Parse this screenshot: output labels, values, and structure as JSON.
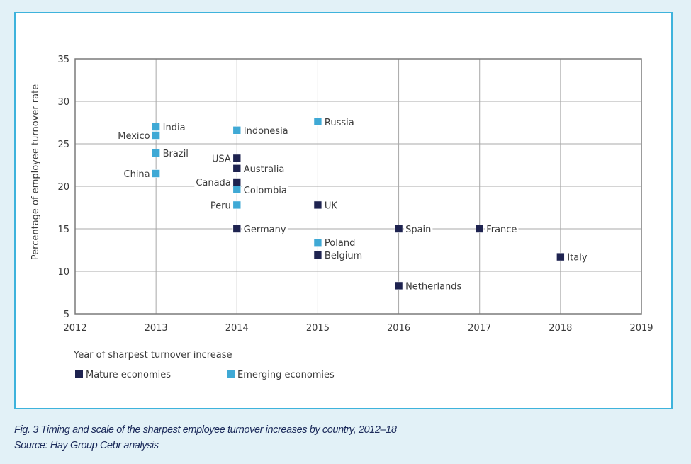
{
  "chart_data": {
    "type": "scatter",
    "title": "",
    "xlabel": "Year of sharpest turnover increase",
    "ylabel": "Percentage of employee turnover rate",
    "xlim": [
      2012,
      2019
    ],
    "ylim": [
      5,
      35
    ],
    "xticks": [
      2012,
      2013,
      2014,
      2015,
      2016,
      2017,
      2018,
      2019
    ],
    "yticks": [
      5,
      10,
      15,
      20,
      25,
      30,
      35
    ],
    "grid": true,
    "legend_position": "bottom-left",
    "series": [
      {
        "name": "Mature economies",
        "color": "#1e2350",
        "points": [
          {
            "label": "USA",
            "x": 2014,
            "y": 23.3,
            "label_side": "left"
          },
          {
            "label": "Australia",
            "x": 2014,
            "y": 22.1,
            "label_side": "right"
          },
          {
            "label": "Canada",
            "x": 2014,
            "y": 20.5,
            "label_side": "left"
          },
          {
            "label": "Germany",
            "x": 2014,
            "y": 15.0,
            "label_side": "right"
          },
          {
            "label": "UK",
            "x": 2015,
            "y": 17.8,
            "label_side": "right"
          },
          {
            "label": "Belgium",
            "x": 2015,
            "y": 11.9,
            "label_side": "right"
          },
          {
            "label": "Spain",
            "x": 2016,
            "y": 15.0,
            "label_side": "right"
          },
          {
            "label": "Netherlands",
            "x": 2016,
            "y": 8.3,
            "label_side": "right"
          },
          {
            "label": "France",
            "x": 2017,
            "y": 15.0,
            "label_side": "right"
          },
          {
            "label": "Italy",
            "x": 2018,
            "y": 11.7,
            "label_side": "right"
          }
        ]
      },
      {
        "name": "Emerging economies",
        "color": "#3fa9d5",
        "points": [
          {
            "label": "India",
            "x": 2013,
            "y": 27.0,
            "label_side": "right"
          },
          {
            "label": "Mexico",
            "x": 2013,
            "y": 26.0,
            "label_side": "left"
          },
          {
            "label": "Brazil",
            "x": 2013,
            "y": 23.9,
            "label_side": "right"
          },
          {
            "label": "China",
            "x": 2013,
            "y": 21.5,
            "label_side": "left"
          },
          {
            "label": "Indonesia",
            "x": 2014,
            "y": 26.6,
            "label_side": "right"
          },
          {
            "label": "Colombia",
            "x": 2014,
            "y": 19.6,
            "label_side": "right"
          },
          {
            "label": "Peru",
            "x": 2014,
            "y": 17.8,
            "label_side": "left"
          },
          {
            "label": "Russia",
            "x": 2015,
            "y": 27.6,
            "label_side": "right"
          },
          {
            "label": "Poland",
            "x": 2015,
            "y": 13.4,
            "label_side": "right"
          }
        ]
      }
    ]
  },
  "caption": {
    "figure": "Fig. 3 Timing and scale of the sharpest employee turnover increases by country, 2012–18",
    "source": "Source: Hay Group Cebr analysis"
  }
}
